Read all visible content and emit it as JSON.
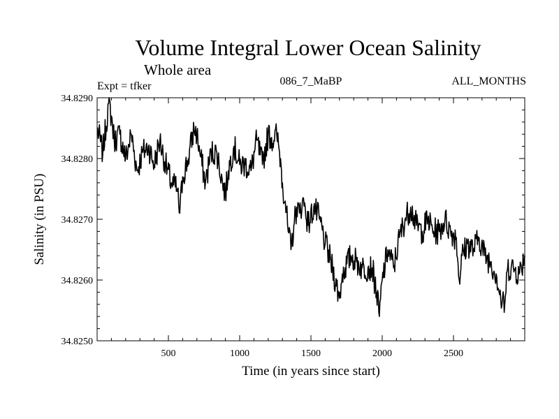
{
  "header": {
    "title": "Volume Integral Lower Ocean Salinity",
    "subtitle": "Whole area",
    "expt_label": "Expt = tfker",
    "run_label": "086_7_MaBP",
    "months_label": "ALL_MONTHS"
  },
  "chart_data": {
    "type": "line",
    "title": "Volume Integral Lower Ocean Salinity",
    "subtitle": "Whole area",
    "xlabel": "Time (in years since start)",
    "ylabel": "Salinity (in PSU)",
    "xlim": [
      0,
      3000
    ],
    "ylim": [
      34.825,
      34.829
    ],
    "x_ticks": [
      500,
      1000,
      1500,
      2000,
      2500
    ],
    "x_tick_labels": [
      "500",
      "1000",
      "1500",
      "2000",
      "2500"
    ],
    "y_ticks": [
      34.825,
      34.826,
      34.827,
      34.828,
      34.829
    ],
    "y_tick_labels": [
      "34.8250",
      "34.8260",
      "34.8270",
      "34.8280",
      "34.8290"
    ],
    "grid": false,
    "line_color": "#000000",
    "series": [
      {
        "x": [
          0,
          40,
          80,
          100,
          120,
          160,
          200,
          240,
          280,
          320,
          360,
          400,
          440,
          480,
          520,
          560,
          580,
          600,
          640,
          680,
          700,
          720,
          760,
          800,
          840,
          880,
          900,
          920,
          960,
          1000,
          1040,
          1080,
          1120,
          1160,
          1200,
          1240,
          1260,
          1280,
          1290,
          1300,
          1320,
          1340,
          1360,
          1380,
          1400,
          1420,
          1440,
          1460,
          1480,
          1520,
          1560,
          1600,
          1640,
          1680,
          1700,
          1720,
          1740,
          1780,
          1820,
          1860,
          1900,
          1930,
          1960,
          1980,
          2000,
          2040,
          2080,
          2120,
          2160,
          2200,
          2240,
          2280,
          2320,
          2360,
          2400,
          2440,
          2480,
          2520,
          2540,
          2560,
          2600,
          2640,
          2680,
          2720,
          2760,
          2800,
          2840,
          2860,
          2880,
          2920,
          2960,
          3000
        ],
        "values": [
          34.8285,
          34.8281,
          34.8289,
          34.8287,
          34.8283,
          34.8284,
          34.828,
          34.8284,
          34.8278,
          34.8281,
          34.8282,
          34.8279,
          34.8283,
          34.8279,
          34.8276,
          34.8275,
          34.8271,
          34.8277,
          34.828,
          34.8285,
          34.8284,
          34.8281,
          34.8276,
          34.8281,
          34.8281,
          34.8276,
          34.8274,
          34.8278,
          34.8282,
          34.8279,
          34.8279,
          34.8278,
          34.8283,
          34.8279,
          34.8284,
          34.8283,
          34.8284,
          34.8281,
          34.8279,
          34.8276,
          34.8273,
          34.8268,
          34.8265,
          34.8269,
          34.8272,
          34.8271,
          34.8273,
          34.8272,
          34.8269,
          34.8272,
          34.827,
          34.8266,
          34.8263,
          34.8259,
          34.8257,
          34.8261,
          34.8262,
          34.8264,
          34.8263,
          34.8262,
          34.8262,
          34.8262,
          34.8258,
          34.8254,
          34.826,
          34.8265,
          34.8262,
          34.8267,
          34.827,
          34.8272,
          34.8269,
          34.8268,
          34.827,
          34.8268,
          34.8268,
          34.827,
          34.8268,
          34.8267,
          34.826,
          34.8264,
          34.8266,
          34.8265,
          34.8267,
          34.8264,
          34.8263,
          34.8261,
          34.8256,
          34.8256,
          34.8262,
          34.8262,
          34.8261,
          34.8264
        ]
      }
    ]
  }
}
